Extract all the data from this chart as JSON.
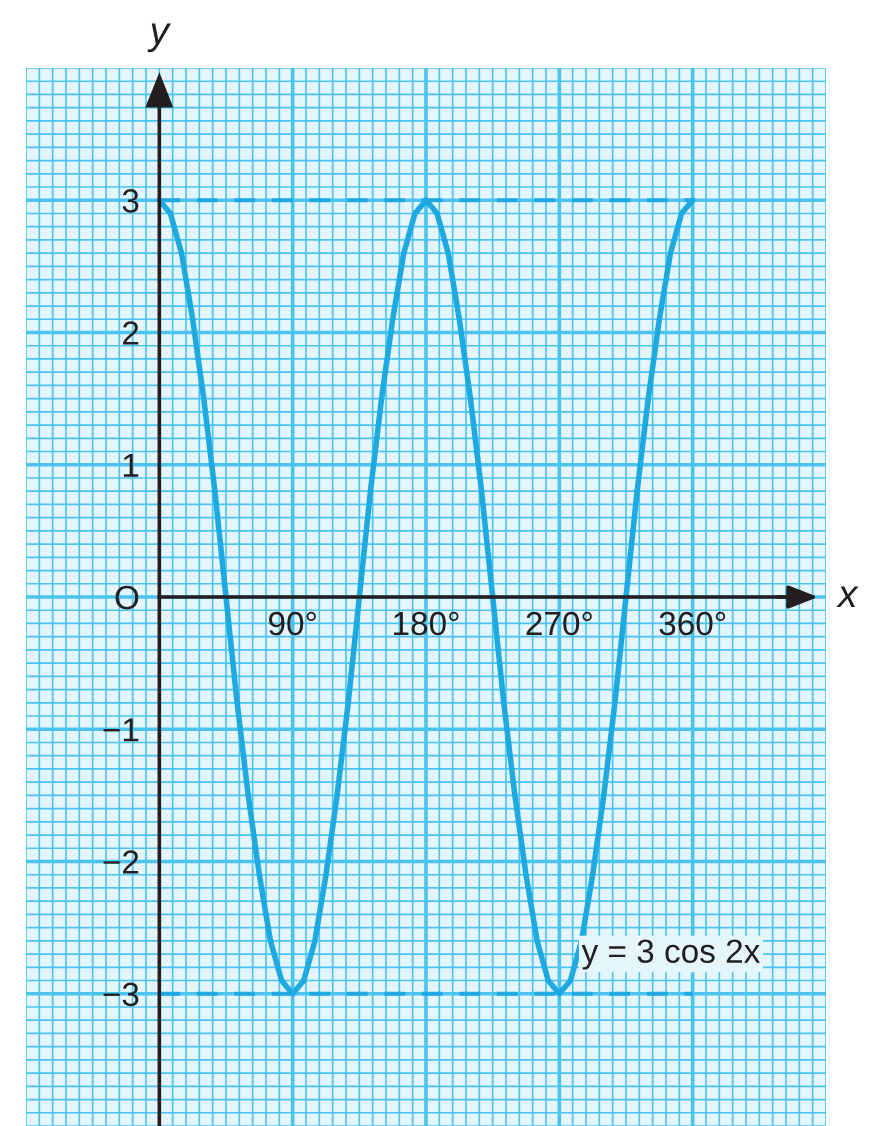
{
  "chart_data": {
    "type": "line",
    "xlabel": "x",
    "ylabel": "y",
    "x": [
      0,
      7.5,
      15,
      22.5,
      30,
      37.5,
      45,
      52.5,
      60,
      67.5,
      75,
      82.5,
      90,
      97.5,
      105,
      112.5,
      120,
      127.5,
      135,
      142.5,
      150,
      157.5,
      165,
      172.5,
      180,
      187.5,
      195,
      202.5,
      210,
      217.5,
      225,
      232.5,
      240,
      247.5,
      255,
      262.5,
      270,
      277.5,
      285,
      292.5,
      300,
      307.5,
      315,
      322.5,
      330,
      337.5,
      345,
      352.5,
      360
    ],
    "series": [
      {
        "color": "#1ea9e1",
        "values": [
          3,
          2.9,
          2.6,
          2.1,
          1.5,
          0.8,
          0,
          -0.8,
          -1.5,
          -2.1,
          -2.6,
          -2.9,
          -3,
          -2.9,
          -2.6,
          -2.1,
          -1.5,
          -0.8,
          0,
          0.8,
          1.5,
          2.1,
          2.6,
          2.9,
          3,
          2.9,
          2.6,
          2.1,
          1.5,
          0.8,
          0,
          -0.8,
          -1.5,
          -2.1,
          -2.6,
          -2.9,
          -3,
          -2.9,
          -2.6,
          -2.1,
          -1.5,
          -0.8,
          0,
          0.8,
          1.5,
          2.1,
          2.6,
          2.9,
          3
        ]
      }
    ],
    "xlim": [
      -90,
      450
    ],
    "ylim": [
      -4,
      4
    ],
    "xticks": [
      {
        "value": -90,
        "label": null
      },
      {
        "value": -81,
        "label": null
      },
      {
        "value": -72,
        "label": null
      },
      {
        "value": -63,
        "label": null
      },
      {
        "value": -54,
        "label": null
      },
      {
        "value": -45,
        "label": null
      },
      {
        "value": -36,
        "label": null
      },
      {
        "value": -27,
        "label": null
      },
      {
        "value": -18,
        "label": null
      },
      {
        "value": -9,
        "label": null
      },
      {
        "value": 0,
        "label": null
      },
      {
        "value": 9,
        "label": null
      },
      {
        "value": 18,
        "label": null
      },
      {
        "value": 27,
        "label": null
      },
      {
        "value": 36,
        "label": null
      },
      {
        "value": 45,
        "label": null
      },
      {
        "value": 54,
        "label": null
      },
      {
        "value": 63,
        "label": null
      },
      {
        "value": 72,
        "label": null
      },
      {
        "value": 81,
        "label": null
      },
      {
        "value": 90,
        "label": "90°"
      },
      {
        "value": 99,
        "label": null
      },
      {
        "value": 108,
        "label": null
      },
      {
        "value": 117,
        "label": null
      },
      {
        "value": 126,
        "label": null
      },
      {
        "value": 135,
        "label": null
      },
      {
        "value": 144,
        "label": null
      },
      {
        "value": 153,
        "label": null
      },
      {
        "value": 162,
        "label": null
      },
      {
        "value": 171,
        "label": null
      },
      {
        "value": 180,
        "label": "180°"
      },
      {
        "value": 189,
        "label": null
      },
      {
        "value": 198,
        "label": null
      },
      {
        "value": 207,
        "label": null
      },
      {
        "value": 216,
        "label": null
      },
      {
        "value": 225,
        "label": null
      },
      {
        "value": 234,
        "label": null
      },
      {
        "value": 243,
        "label": null
      },
      {
        "value": 252,
        "label": null
      },
      {
        "value": 261,
        "label": null
      },
      {
        "value": 270,
        "label": "270°"
      },
      {
        "value": 279,
        "label": null
      },
      {
        "value": 288,
        "label": null
      },
      {
        "value": 297,
        "label": null
      },
      {
        "value": 306,
        "label": null
      },
      {
        "value": 315,
        "label": null
      },
      {
        "value": 324,
        "label": null
      },
      {
        "value": 333,
        "label": null
      },
      {
        "value": 342,
        "label": null
      },
      {
        "value": 351,
        "label": null
      },
      {
        "value": 360,
        "label": "360°"
      },
      {
        "value": 369,
        "label": null
      },
      {
        "value": 378,
        "label": null
      },
      {
        "value": 387,
        "label": null
      },
      {
        "value": 396,
        "label": null
      },
      {
        "value": 405,
        "label": null
      },
      {
        "value": 414,
        "label": null
      },
      {
        "value": 423,
        "label": null
      },
      {
        "value": 432,
        "label": null
      },
      {
        "value": 441,
        "label": null
      },
      {
        "value": 450,
        "label": null
      }
    ],
    "yticks": [
      {
        "value": -4,
        "label": null
      },
      {
        "value": -3.9,
        "label": null
      },
      {
        "value": -3.8,
        "label": null
      },
      {
        "value": -3.7,
        "label": null
      },
      {
        "value": -3.6,
        "label": null
      },
      {
        "value": -3.5,
        "label": null
      },
      {
        "value": -3.4,
        "label": null
      },
      {
        "value": -3.3,
        "label": null
      },
      {
        "value": -3.2,
        "label": null
      },
      {
        "value": -3.1,
        "label": null
      },
      {
        "value": -3,
        "label": "−3"
      },
      {
        "value": -2.9,
        "label": null
      },
      {
        "value": -2.8,
        "label": null
      },
      {
        "value": -2.7,
        "label": null
      },
      {
        "value": -2.6,
        "label": null
      },
      {
        "value": -2.5,
        "label": null
      },
      {
        "value": -2.4,
        "label": null
      },
      {
        "value": -2.3,
        "label": null
      },
      {
        "value": -2.2,
        "label": null
      },
      {
        "value": -2.1,
        "label": null
      },
      {
        "value": -2,
        "label": "−2"
      },
      {
        "value": -1.9,
        "label": null
      },
      {
        "value": -1.8,
        "label": null
      },
      {
        "value": -1.7,
        "label": null
      },
      {
        "value": -1.6,
        "label": null
      },
      {
        "value": -1.5,
        "label": null
      },
      {
        "value": -1.4,
        "label": null
      },
      {
        "value": -1.3,
        "label": null
      },
      {
        "value": -1.2,
        "label": null
      },
      {
        "value": -1.1,
        "label": null
      },
      {
        "value": -1,
        "label": "−1"
      },
      {
        "value": -0.9,
        "label": null
      },
      {
        "value": -0.8,
        "label": null
      },
      {
        "value": -0.7,
        "label": null
      },
      {
        "value": -0.6,
        "label": null
      },
      {
        "value": -0.5,
        "label": null
      },
      {
        "value": -0.4,
        "label": null
      },
      {
        "value": -0.3,
        "label": null
      },
      {
        "value": -0.2,
        "label": null
      },
      {
        "value": -0.1,
        "label": null
      },
      {
        "value": 0,
        "label": "O"
      },
      {
        "value": 0.1,
        "label": null
      },
      {
        "value": 0.2,
        "label": null
      },
      {
        "value": 0.3,
        "label": null
      },
      {
        "value": 0.4,
        "label": null
      },
      {
        "value": 0.5,
        "label": null
      },
      {
        "value": 0.6,
        "label": null
      },
      {
        "value": 0.7,
        "label": null
      },
      {
        "value": 0.8,
        "label": null
      },
      {
        "value": 0.9,
        "label": null
      },
      {
        "value": 1,
        "label": "1"
      },
      {
        "value": 1.1,
        "label": null
      },
      {
        "value": 1.2,
        "label": null
      },
      {
        "value": 1.3,
        "label": null
      },
      {
        "value": 1.4,
        "label": null
      },
      {
        "value": 1.5,
        "label": null
      },
      {
        "value": 1.6,
        "label": null
      },
      {
        "value": 1.7,
        "label": null
      },
      {
        "value": 1.8,
        "label": null
      },
      {
        "value": 1.9,
        "label": null
      },
      {
        "value": 2,
        "label": "2"
      },
      {
        "value": 2.1,
        "label": null
      },
      {
        "value": 2.2,
        "label": null
      },
      {
        "value": 2.3,
        "label": null
      },
      {
        "value": 2.4,
        "label": null
      },
      {
        "value": 2.5,
        "label": null
      },
      {
        "value": 2.6,
        "label": null
      },
      {
        "value": 2.7,
        "label": null
      },
      {
        "value": 2.8,
        "label": null
      },
      {
        "value": 2.9,
        "label": null
      },
      {
        "value": 3,
        "label": "3"
      },
      {
        "value": 3.1,
        "label": null
      },
      {
        "value": 3.2,
        "label": null
      },
      {
        "value": 3.3,
        "label": null
      },
      {
        "value": 3.4,
        "label": null
      },
      {
        "value": 3.5,
        "label": null
      },
      {
        "value": 3.6,
        "label": null
      },
      {
        "value": 3.7,
        "label": null
      },
      {
        "value": 3.8,
        "label": null
      },
      {
        "value": 3.9,
        "label": null
      },
      {
        "value": 4,
        "label": null
      }
    ],
    "ref_lines": [
      {
        "axis": "y",
        "value": 3,
        "color": "#1ea9e1",
        "line_style": "dashed"
      },
      {
        "axis": "y",
        "value": -3,
        "color": "#1ea9e1",
        "line_style": "dashed"
      }
    ],
    "annotations": [
      {
        "text": "y = 3 cos 2x",
        "x": 285,
        "y": -2.7
      }
    ],
    "grid": true,
    "line_style": "solid",
    "marker": "none"
  }
}
